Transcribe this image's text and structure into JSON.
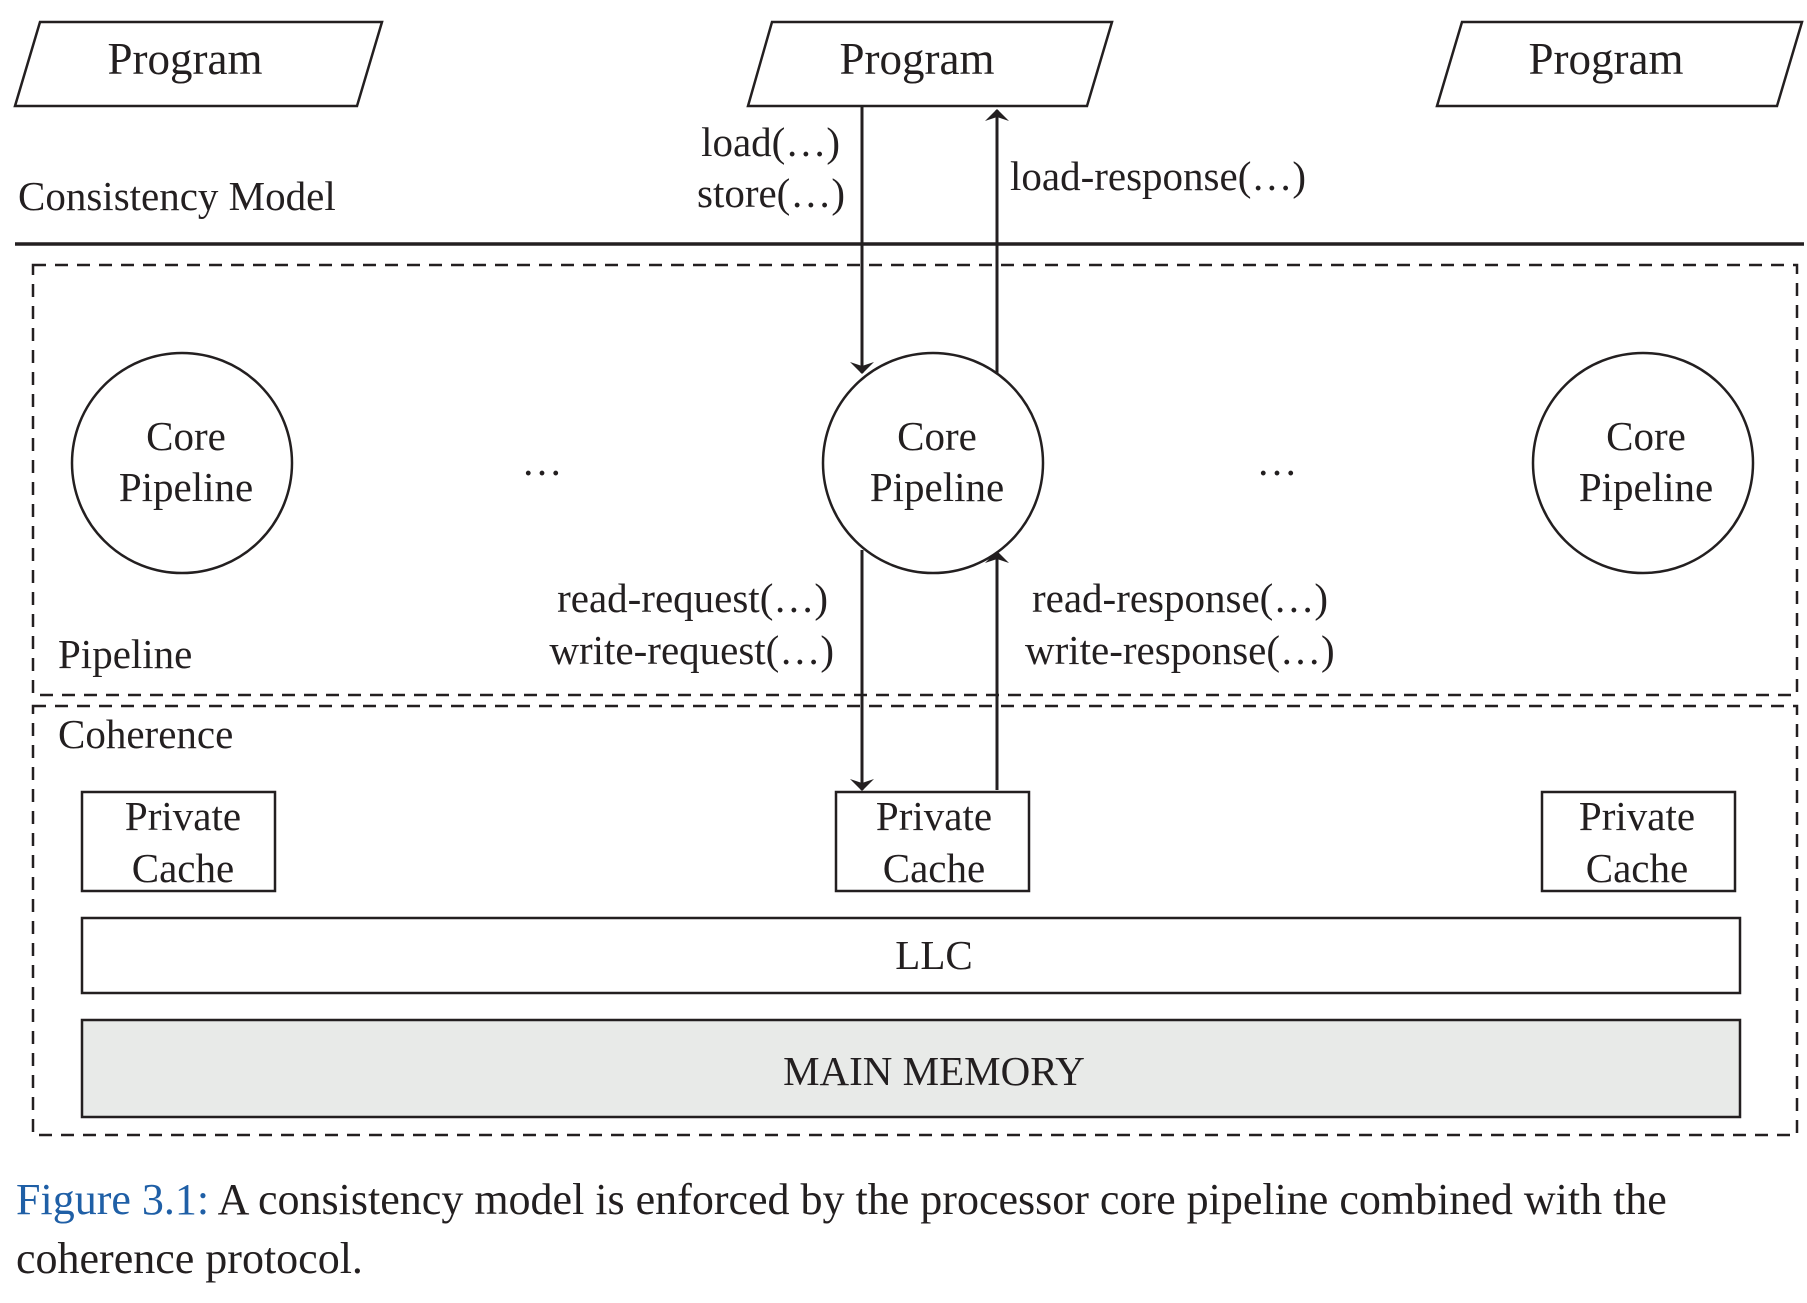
{
  "programs": [
    {
      "label": "Program"
    },
    {
      "label": "Program"
    },
    {
      "label": "Program"
    }
  ],
  "layers": {
    "consistency": "Consistency Model",
    "pipeline": "Pipeline",
    "coherence": "Coherence"
  },
  "program_to_core": {
    "requests": [
      "load(…)",
      "store(…)"
    ],
    "response": "load-response(…)"
  },
  "cores": [
    {
      "line1": "Core",
      "line2": "Pipeline"
    },
    {
      "line1": "Core",
      "line2": "Pipeline"
    },
    {
      "line1": "Core",
      "line2": "Pipeline"
    }
  ],
  "ellipsis": "…",
  "core_to_cache": {
    "requests": [
      "read-request(…)",
      "write-request(…)"
    ],
    "responses": [
      "read-response(…)",
      "write-response(…)"
    ]
  },
  "caches": [
    {
      "line1": "Private",
      "line2": "Cache"
    },
    {
      "line1": "Private",
      "line2": "Cache"
    },
    {
      "line1": "Private",
      "line2": "Cache"
    }
  ],
  "llc": "LLC",
  "main_memory": "MAIN MEMORY",
  "caption": {
    "figure": "Figure 3.1:",
    "text": " A consistency model is enforced by the processor core pipeline combined with the coherence protocol."
  },
  "colors": {
    "ink": "#231f20",
    "memory_fill": "#e8eae8",
    "caption_figure": "#1f5fa6"
  }
}
